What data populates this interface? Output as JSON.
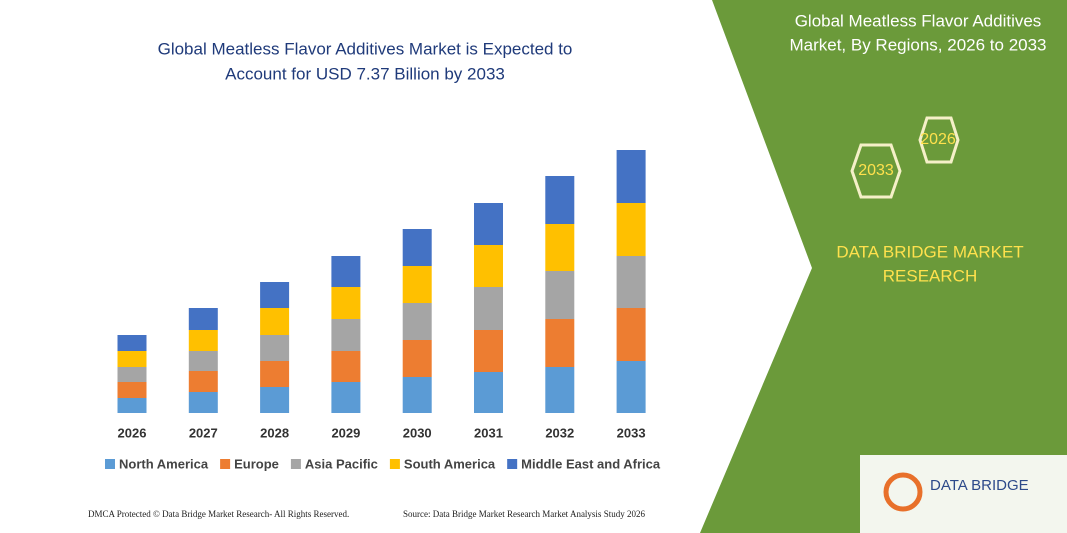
{
  "chart_data": {
    "type": "bar",
    "stacked": true,
    "title": [
      "Global Meatless Flavor Additives Market is Expected to",
      "Account for USD 7.37 Billion by 2033"
    ],
    "categories": [
      "2026",
      "2027",
      "2028",
      "2029",
      "2030",
      "2031",
      "2032",
      "2033"
    ],
    "series": [
      {
        "name": "North America",
        "color": "#5b9bd5",
        "values": [
          15,
          21,
          26,
          31,
          36,
          41,
          46,
          52
        ]
      },
      {
        "name": "Europe",
        "color": "#ed7d31",
        "values": [
          16,
          21,
          26,
          31,
          37,
          42,
          48,
          53
        ]
      },
      {
        "name": "Asia Pacific",
        "color": "#a5a5a5",
        "values": [
          15,
          20,
          26,
          32,
          37,
          43,
          48,
          52
        ]
      },
      {
        "name": "South America",
        "color": "#ffc000",
        "values": [
          16,
          21,
          27,
          32,
          37,
          42,
          47,
          53
        ]
      },
      {
        "name": "Middle East and Africa",
        "color": "#4472c4",
        "values": [
          16,
          22,
          26,
          31,
          37,
          42,
          48,
          53
        ]
      }
    ]
  },
  "side_panel": {
    "title": [
      "Global Meatless Flavor Additives",
      "Market, By Regions, 2026 to 2033"
    ],
    "hex_labels": [
      "2026",
      "2033"
    ],
    "brand": [
      "DATA BRIDGE MARKET",
      "RESEARCH"
    ],
    "logo": "DATA BRIDGE"
  },
  "footer": {
    "left": "DMCA Protected © Data Bridge Market Research-  All Rights Reserved.",
    "right": "Source: Data Bridge Market Research  Market Analysis Study 2026"
  }
}
